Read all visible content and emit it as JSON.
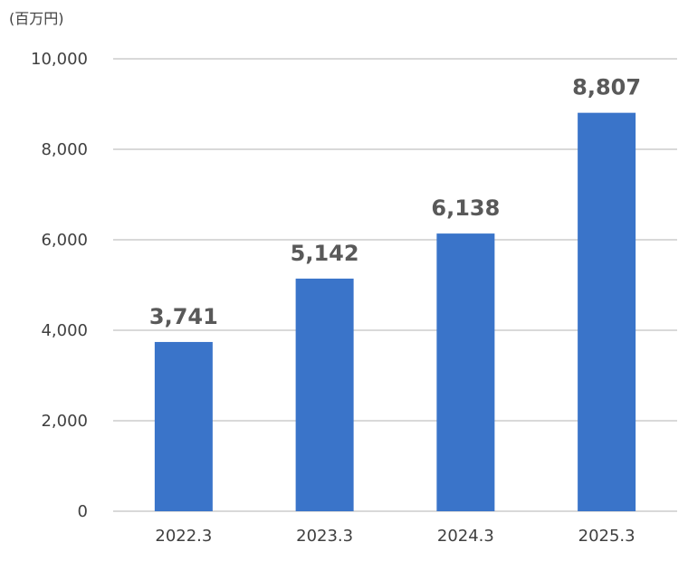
{
  "chart_data": {
    "type": "bar",
    "unit_label": "(百万円)",
    "categories": [
      "2022.3",
      "2023.3",
      "2024.3",
      "2025.3"
    ],
    "values": [
      3741,
      5142,
      6138,
      8807
    ],
    "data_labels": [
      "3,741",
      "5,142",
      "6,138",
      "8,807"
    ],
    "ylim": [
      0,
      10000
    ],
    "yticks": [
      0,
      2000,
      4000,
      6000,
      8000,
      10000
    ],
    "ytick_labels": [
      "0",
      "2,000",
      "4,000",
      "6,000",
      "8,000",
      "10,000"
    ],
    "grid": true,
    "legend": "none",
    "colors": {
      "bar": "#3a74c9",
      "grid": "#d9d9d9",
      "text": "#404040",
      "data_label": "#595959"
    }
  }
}
